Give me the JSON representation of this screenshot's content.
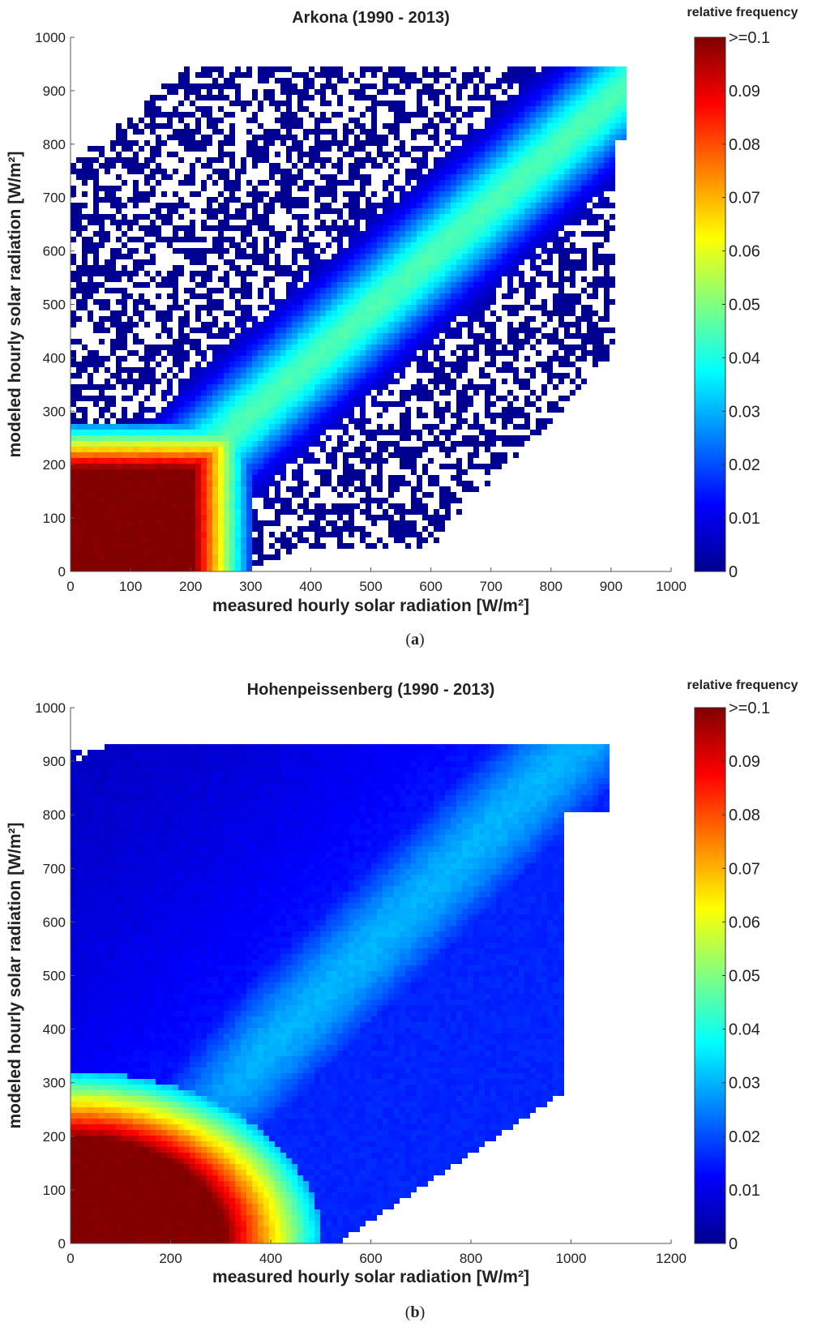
{
  "colors": {
    "colormap": [
      "#00008f",
      "#0000ff",
      "#0080ff",
      "#00ffff",
      "#80ff80",
      "#ffff00",
      "#ff8000",
      "#ff0000",
      "#800000"
    ]
  },
  "colorbar": {
    "title": "relative frequency",
    "range": [
      0,
      0.1
    ],
    "ticks": [
      {
        "value": 0.1,
        "label": ">=0.1"
      },
      {
        "value": 0.09,
        "label": "0.09"
      },
      {
        "value": 0.08,
        "label": "0.08"
      },
      {
        "value": 0.07,
        "label": "0.07"
      },
      {
        "value": 0.06,
        "label": "0.06"
      },
      {
        "value": 0.05,
        "label": "0.05"
      },
      {
        "value": 0.04,
        "label": "0.04"
      },
      {
        "value": 0.03,
        "label": "0.03"
      },
      {
        "value": 0.02,
        "label": "0.02"
      },
      {
        "value": 0.01,
        "label": "0.01"
      },
      {
        "value": 0,
        "label": "0"
      }
    ]
  },
  "chart_data": [
    {
      "type": "heatmap",
      "panel": "a",
      "caption_open": "(",
      "caption_letter": "a",
      "caption_close": ")",
      "title": "Arkona (1990 - 2013)",
      "xlabel": "measured hourly solar radiation [W/m²]",
      "ylabel": "modeled hourly solar radiation [W/m²]",
      "xlim": [
        0,
        1000
      ],
      "ylim": [
        0,
        1000
      ],
      "xticks": [
        0,
        100,
        200,
        300,
        400,
        500,
        600,
        700,
        800,
        900,
        1000
      ],
      "yticks": [
        0,
        100,
        200,
        300,
        400,
        500,
        600,
        700,
        800,
        900,
        1000
      ],
      "description_values": {
        "saturated_region": {
          "x": [
            0,
            200
          ],
          "y": [
            0,
            180
          ],
          "frequency": ">=0.1"
        },
        "diagonal_ridge": {
          "from": [
            250,
            250
          ],
          "to": [
            900,
            900
          ],
          "frequency": 0.045
        },
        "max_x": 920,
        "max_y": 940
      }
    },
    {
      "type": "heatmap",
      "panel": "b",
      "caption_open": "(",
      "caption_letter": "b",
      "caption_close": ")",
      "title": "Hohenpeissenberg (1990 - 2013)",
      "xlabel": "measured hourly solar radiation [W/m²]",
      "ylabel": "modeled hourly solar radiation [W/m²]",
      "xlim": [
        0,
        1200
      ],
      "ylim": [
        0,
        1000
      ],
      "xticks": [
        0,
        200,
        400,
        600,
        800,
        1000,
        1200
      ],
      "yticks": [
        0,
        100,
        200,
        300,
        400,
        500,
        600,
        700,
        800,
        900,
        1000
      ],
      "description_values": {
        "saturated_region": {
          "x": [
            0,
            320
          ],
          "y": [
            0,
            200
          ],
          "frequency": ">=0.1"
        },
        "diagonal_ridge": {
          "from": [
            350,
            350
          ],
          "to": [
            900,
            880
          ],
          "frequency": 0.03
        },
        "max_x": 1070,
        "max_y": 940
      }
    }
  ]
}
